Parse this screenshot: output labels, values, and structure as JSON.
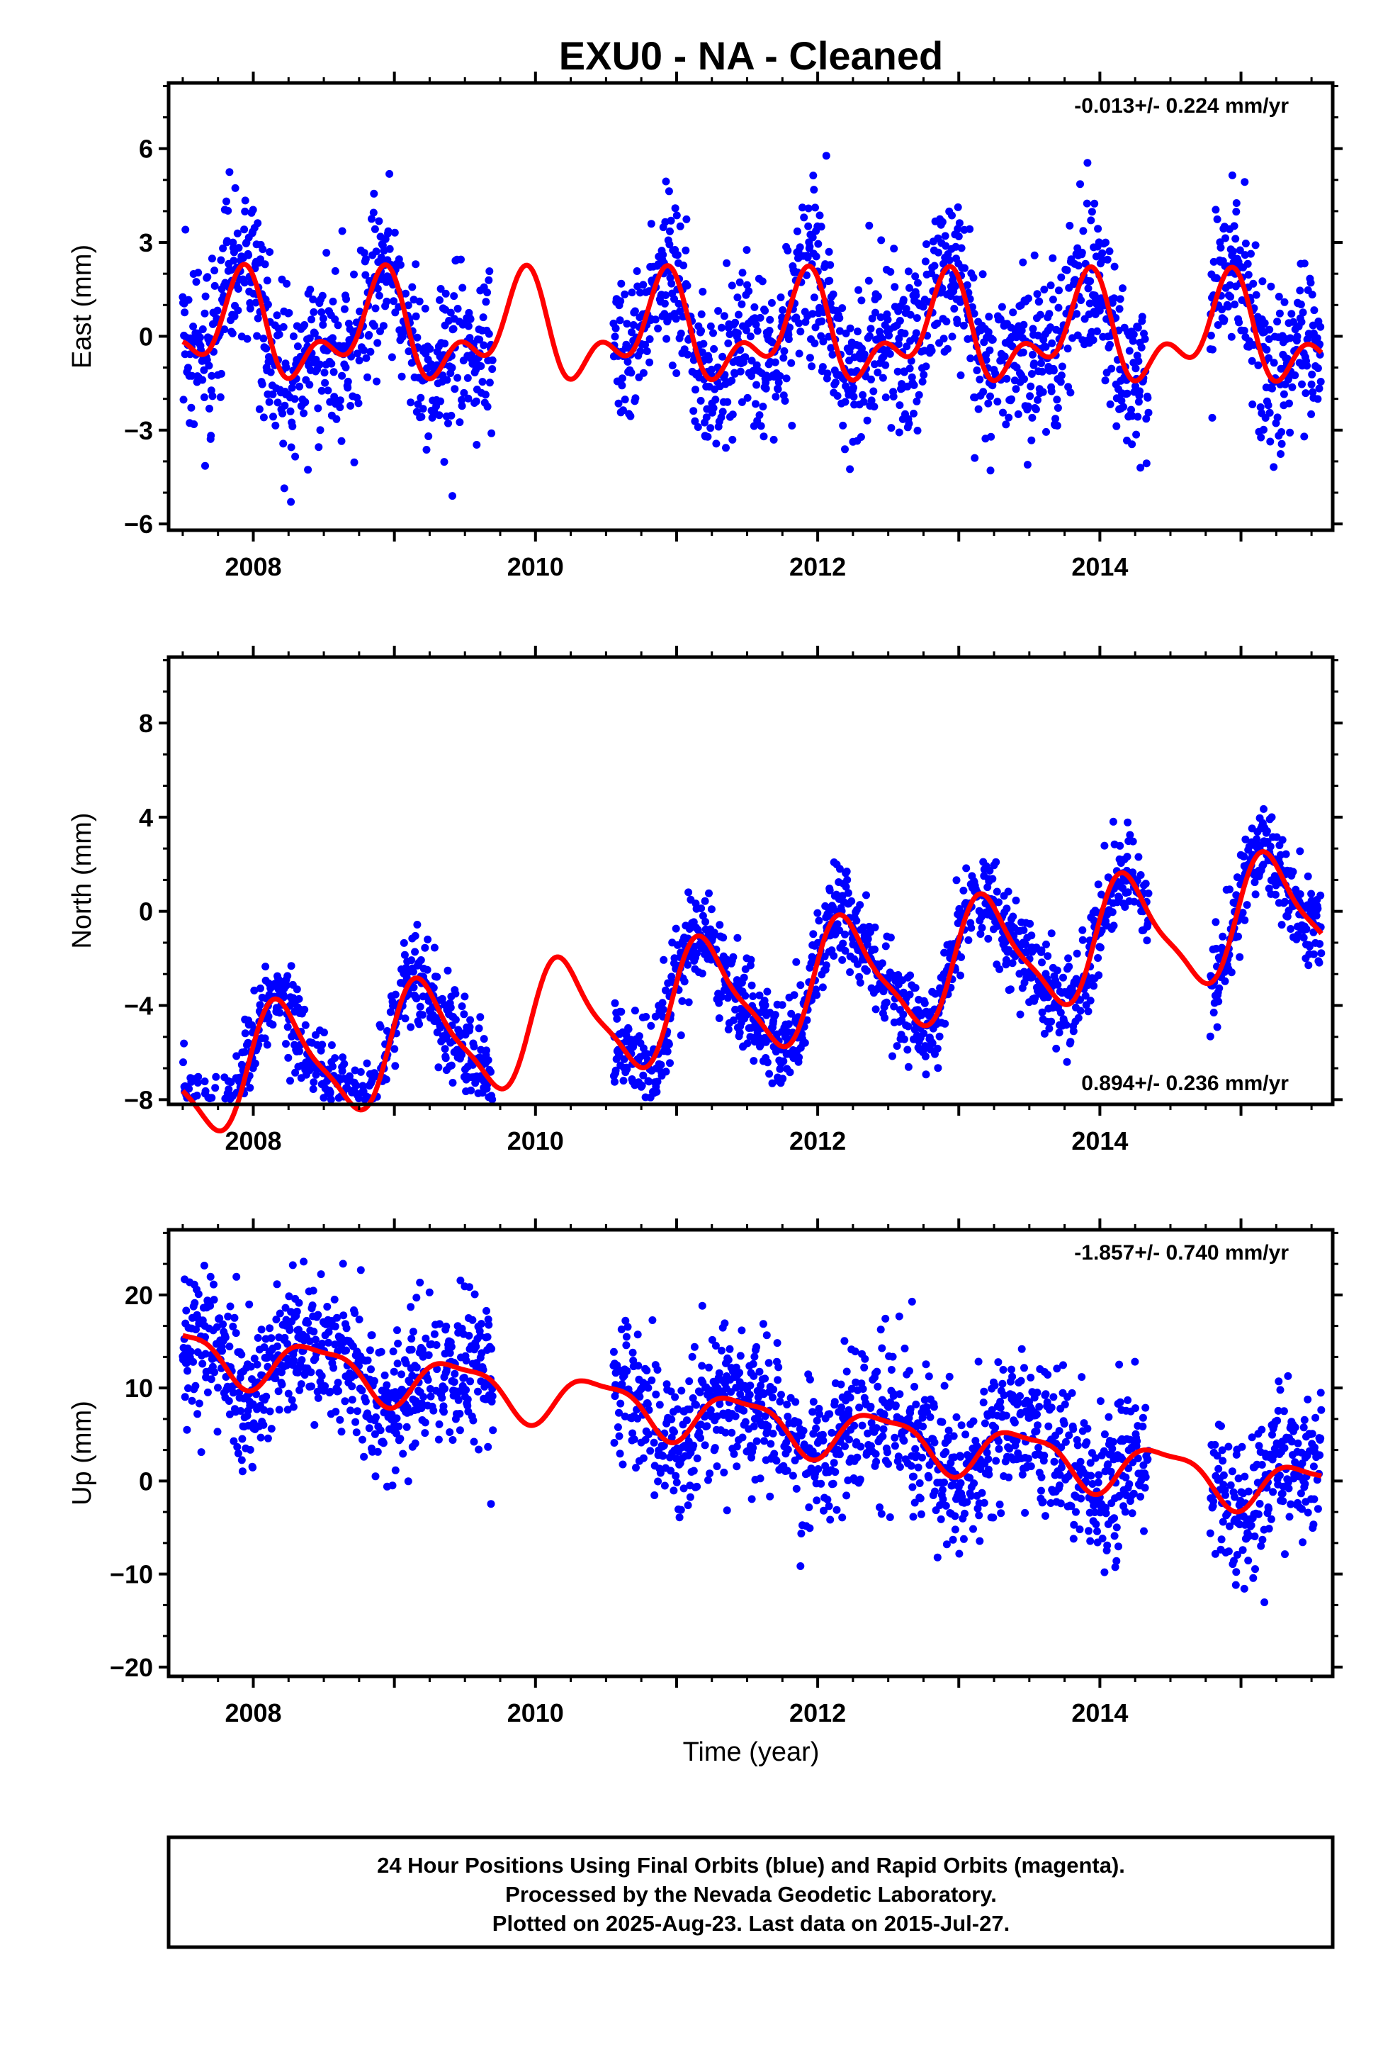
{
  "title": "EXU0  - NA - Cleaned",
  "xlabel": "Time (year)",
  "footer": {
    "line1": "24 Hour Positions Using Final Orbits (blue) and Rapid Orbits (magenta).",
    "line2": "Processed by the Nevada Geodetic Laboratory.",
    "line3": "Plotted on 2025-Aug-23. Last data on 2015-Jul-27."
  },
  "colors": {
    "points": "#0000ff",
    "model": "#ff0000",
    "frame": "#000000"
  },
  "chart_data": [
    {
      "type": "scatter",
      "ylabel": "East (mm)",
      "rate_label": "-0.013+/- 0.224 mm/yr",
      "rate_position": "top-right",
      "xlim": [
        2007.4,
        2015.65
      ],
      "ylim": [
        -6.2,
        8.1
      ],
      "yticks": [
        -6,
        -3,
        0,
        3,
        6
      ],
      "xticks": [
        2008,
        2010,
        2012,
        2014
      ],
      "trend": [
        0.1,
        -0.013
      ],
      "amplitude_annual": 1.3,
      "amplitude_semiannual": 0.9,
      "phase": 0.35,
      "noise_sd": 1.3,
      "gaps": [
        [
          2009.7,
          2010.55
        ],
        [
          2014.35,
          2014.78
        ]
      ],
      "model_curve_label": "",
      "point_series": "Final Orbits"
    },
    {
      "type": "scatter",
      "ylabel": "North (mm)",
      "rate_label": "0.894+/- 0.236 mm/yr",
      "rate_position": "bottom-right",
      "xlim": [
        2007.4,
        2015.65
      ],
      "ylim": [
        -8.2,
        10.8
      ],
      "yticks": [
        -8,
        -4,
        0,
        4,
        8
      ],
      "xticks": [
        2008,
        2010,
        2012,
        2014
      ],
      "trend": [
        -3.5,
        0.894
      ],
      "amplitude_annual": 2.4,
      "amplitude_semiannual": 0.6,
      "phase": 0.05,
      "noise_sd": 1.0,
      "gaps": [
        [
          2009.7,
          2010.55
        ],
        [
          2014.35,
          2014.78
        ]
      ],
      "model_curve_label": "",
      "point_series": "Final Orbits"
    },
    {
      "type": "scatter",
      "ylabel": "Up (mm)",
      "rate_label": "-1.857+/- 0.740 mm/yr",
      "rate_position": "top-right",
      "xlim": [
        2007.4,
        2015.65
      ],
      "ylim": [
        -21,
        27
      ],
      "yticks": [
        -20,
        -10,
        0,
        10,
        20
      ],
      "xticks": [
        2008,
        2010,
        2012,
        2014
      ],
      "trend": [
        6.5,
        -1.857
      ],
      "amplitude_annual": 2.6,
      "amplitude_semiannual": 0.8,
      "phase": -0.2,
      "noise_sd": 4.0,
      "gaps": [
        [
          2009.7,
          2010.55
        ],
        [
          2014.35,
          2014.78
        ]
      ],
      "model_curve_label": "",
      "point_series": "Final Orbits"
    }
  ]
}
